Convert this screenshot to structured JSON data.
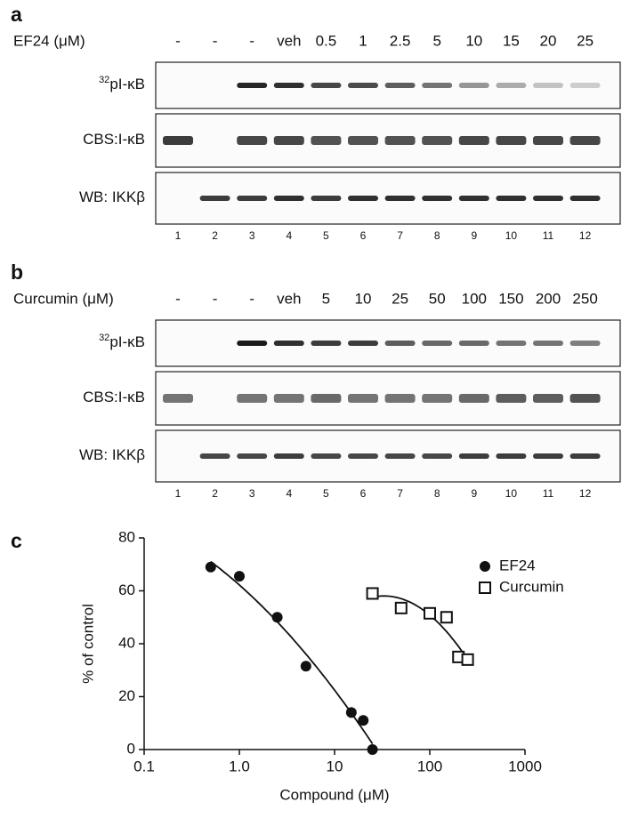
{
  "panels": [
    {
      "label": "a",
      "treatment_label": "EF24 (μM)",
      "lanes": [
        "-",
        "-",
        "-",
        "veh",
        "0.5",
        "1",
        "2.5",
        "5",
        "10",
        "15",
        "20",
        "25"
      ],
      "rows": [
        {
          "label_superscript": "32",
          "label": "pI-κB"
        },
        {
          "label": "CBS:I-κB"
        },
        {
          "label": "WB: IKKβ"
        }
      ],
      "lane_numbers": [
        1,
        2,
        3,
        4,
        5,
        6,
        7,
        8,
        9,
        10,
        11,
        12
      ]
    },
    {
      "label": "b",
      "treatment_label": "Curcumin (μM)",
      "lanes": [
        "-",
        "-",
        "-",
        "veh",
        "5",
        "10",
        "25",
        "50",
        "100",
        "150",
        "200",
        "250"
      ],
      "rows": [
        {
          "label_superscript": "32",
          "label": "pI-κB"
        },
        {
          "label": "CBS:I-κB"
        },
        {
          "label": "WB: IKKβ"
        }
      ],
      "lane_numbers": [
        1,
        2,
        3,
        4,
        5,
        6,
        7,
        8,
        9,
        10,
        11,
        12
      ]
    }
  ],
  "chart_data": {
    "panel_label": "c",
    "type": "scatter",
    "x_label": "Compound (μM)",
    "y_label": "% of control",
    "xscale": "log",
    "xlim": [
      0.1,
      1000
    ],
    "ylim": [
      0,
      80
    ],
    "xticks": [
      0.1,
      {
        "value": 1,
        "label": "1.0"
      },
      10,
      100,
      1000
    ],
    "yticks": [
      0,
      20,
      40,
      60,
      80
    ],
    "legend": "top-right",
    "series": [
      {
        "name": "EF24",
        "color": "#111111",
        "marker": "filled-circle",
        "x": [
          0.5,
          1,
          2.5,
          5,
          15,
          20,
          25
        ],
        "values": [
          69,
          65.5,
          50,
          31.5,
          14,
          11,
          0
        ]
      },
      {
        "name": "Curcumin",
        "color": "#111111",
        "marker": "open-square",
        "x": [
          25,
          50,
          100,
          150,
          200,
          250
        ],
        "values": [
          59,
          53.5,
          51.5,
          50,
          35,
          34
        ]
      }
    ]
  }
}
